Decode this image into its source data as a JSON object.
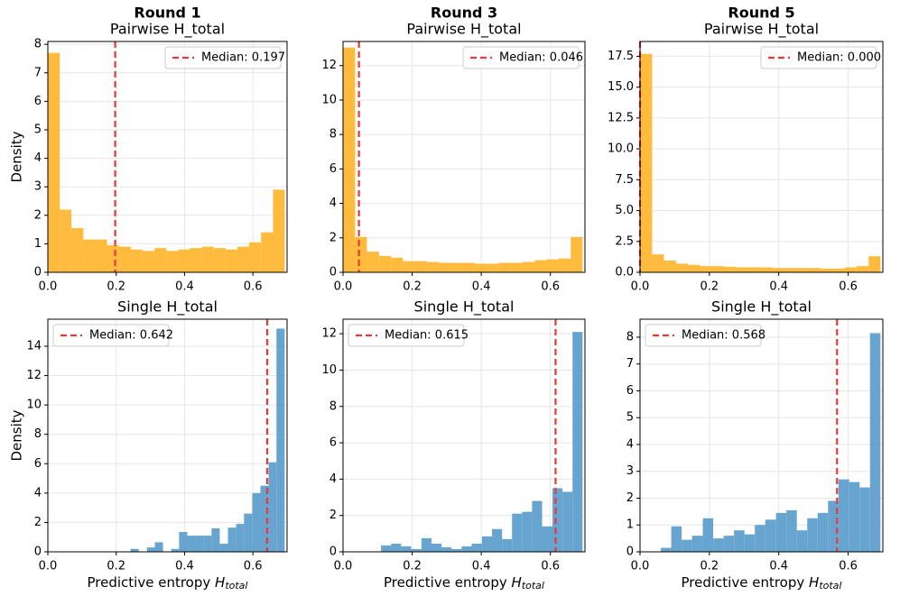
{
  "chart_data": [
    {
      "type": "histogram",
      "suptitle": "Round 1",
      "title": "Pairwise H_total",
      "ylabel": "Density",
      "color": "#ffb733",
      "bins": [
        0,
        0.035,
        0.069,
        0.104,
        0.139,
        0.173,
        0.208,
        0.243,
        0.277,
        0.312,
        0.347,
        0.381,
        0.416,
        0.451,
        0.485,
        0.52,
        0.555,
        0.589,
        0.624,
        0.659,
        0.693
      ],
      "values": [
        7.7,
        2.2,
        1.55,
        1.15,
        1.15,
        0.95,
        0.9,
        0.8,
        0.75,
        0.85,
        0.75,
        0.8,
        0.85,
        0.9,
        0.85,
        0.8,
        0.9,
        1.05,
        1.4,
        2.9
      ],
      "median": 0.197,
      "median_label": "Median: 0.197",
      "legend": "upper right",
      "grid": true,
      "xlim": [
        0,
        0.7
      ],
      "xticks": [
        {
          "value": 0,
          "label": "0.0"
        },
        0.2,
        0.4,
        0.6
      ],
      "ylim": [
        0,
        8.1
      ],
      "yticks": [
        0,
        1,
        2,
        3,
        4,
        5,
        6,
        7,
        8
      ]
    },
    {
      "type": "histogram",
      "suptitle": "Round 3",
      "title": "Pairwise H_total",
      "color": "#ffb733",
      "bins": [
        0,
        0.035,
        0.069,
        0.104,
        0.139,
        0.173,
        0.208,
        0.243,
        0.277,
        0.312,
        0.347,
        0.381,
        0.416,
        0.451,
        0.485,
        0.52,
        0.555,
        0.589,
        0.624,
        0.659,
        0.693
      ],
      "values": [
        13.05,
        2.05,
        1.2,
        0.95,
        0.85,
        0.65,
        0.65,
        0.6,
        0.55,
        0.55,
        0.55,
        0.5,
        0.5,
        0.55,
        0.55,
        0.6,
        0.7,
        0.75,
        0.8,
        2.05
      ],
      "median": 0.046,
      "median_label": "Median: 0.046",
      "legend": "upper right",
      "grid": true,
      "xlim": [
        0,
        0.7
      ],
      "xticks": [
        {
          "value": 0,
          "label": "0.0"
        },
        0.2,
        0.4,
        0.6
      ],
      "ylim": [
        0,
        13.4
      ],
      "yticks": [
        0,
        2,
        4,
        6,
        8,
        10,
        12
      ]
    },
    {
      "type": "histogram",
      "suptitle": "Round 5",
      "title": "Pairwise H_total",
      "color": "#ffb733",
      "bins": [
        0,
        0.035,
        0.069,
        0.104,
        0.139,
        0.173,
        0.208,
        0.243,
        0.277,
        0.312,
        0.347,
        0.381,
        0.416,
        0.451,
        0.485,
        0.52,
        0.555,
        0.589,
        0.624,
        0.659,
        0.693
      ],
      "values": [
        17.7,
        1.45,
        0.95,
        0.7,
        0.6,
        0.5,
        0.5,
        0.45,
        0.4,
        0.4,
        0.4,
        0.35,
        0.35,
        0.35,
        0.35,
        0.3,
        0.3,
        0.4,
        0.5,
        1.3
      ],
      "median": 0.0,
      "median_label": "Median: 0.000",
      "legend": "upper right",
      "grid": true,
      "xlim": [
        0,
        0.7
      ],
      "xticks": [
        {
          "value": 0,
          "label": "0.0"
        },
        0.2,
        0.4,
        0.6
      ],
      "ylim": [
        0,
        18.7
      ],
      "yticks": [
        {
          "value": 0,
          "label": "0.0"
        },
        2.5,
        {
          "value": 5,
          "label": "5.0"
        },
        7.5,
        {
          "value": 10,
          "label": "10.0"
        },
        12.5,
        {
          "value": 15,
          "label": "15.0"
        },
        17.5
      ]
    },
    {
      "type": "histogram",
      "title": "Single H_total",
      "ylabel": "Density",
      "xlabel": "Predictive entropy H_total",
      "color": "#5f9fcc",
      "bins": [
        0.242,
        0.266,
        0.29,
        0.313,
        0.337,
        0.361,
        0.384,
        0.408,
        0.432,
        0.456,
        0.479,
        0.503,
        0.527,
        0.551,
        0.574,
        0.598,
        0.622,
        0.646,
        0.669,
        0.693
      ],
      "values": [
        0.2,
        0,
        0.3,
        0.65,
        0,
        0.2,
        1.35,
        1.1,
        1.1,
        1.1,
        1.6,
        0.55,
        1.65,
        1.9,
        2.6,
        4.0,
        4.5,
        6.1,
        15.2
      ],
      "median": 0.642,
      "median_label": "Median: 0.642",
      "legend": "upper left",
      "grid": true,
      "xlim": [
        0,
        0.7
      ],
      "xticks": [
        {
          "value": 0,
          "label": "0.0"
        },
        0.2,
        0.4,
        0.6
      ],
      "ylim": [
        0,
        15.84
      ],
      "yticks": [
        0,
        2,
        4,
        6,
        8,
        10,
        12,
        14
      ]
    },
    {
      "type": "histogram",
      "title": "Single H_total",
      "xlabel": "Predictive entropy H_total",
      "color": "#5f9fcc",
      "bins": [
        0.11,
        0.139,
        0.168,
        0.197,
        0.227,
        0.256,
        0.285,
        0.314,
        0.343,
        0.372,
        0.402,
        0.431,
        0.46,
        0.489,
        0.518,
        0.547,
        0.576,
        0.606,
        0.635,
        0.664,
        0.693
      ],
      "values": [
        0.35,
        0.45,
        0.3,
        0.15,
        0.75,
        0.45,
        0.25,
        0.15,
        0.3,
        0.45,
        0.85,
        1.25,
        0.7,
        2.1,
        2.2,
        2.8,
        1.4,
        3.5,
        3.3,
        12.1
      ],
      "median": 0.615,
      "median_label": "Median: 0.615",
      "legend": "upper left",
      "grid": true,
      "xlim": [
        0,
        0.7
      ],
      "xticks": [
        {
          "value": 0,
          "label": "0.0"
        },
        0.2,
        0.4,
        0.6
      ],
      "ylim": [
        0,
        12.8
      ],
      "yticks": [
        0,
        2,
        4,
        6,
        8,
        10,
        12
      ]
    },
    {
      "type": "histogram",
      "title": "Single H_total",
      "xlabel": "Predictive entropy H_total",
      "color": "#5f9fcc",
      "bins": [
        0.06,
        0.09,
        0.12,
        0.15,
        0.181,
        0.211,
        0.241,
        0.271,
        0.301,
        0.331,
        0.361,
        0.392,
        0.422,
        0.452,
        0.482,
        0.512,
        0.542,
        0.572,
        0.603,
        0.633,
        0.663,
        0.693
      ],
      "values": [
        0.15,
        0.95,
        0.45,
        0.6,
        1.25,
        0.5,
        0.6,
        0.8,
        0.65,
        1.0,
        1.2,
        1.45,
        1.55,
        0.8,
        1.25,
        1.45,
        1.9,
        2.7,
        2.6,
        2.4,
        8.15
      ],
      "median": 0.568,
      "median_label": "Median: 0.568",
      "legend": "upper left",
      "grid": true,
      "xlim": [
        0,
        0.7
      ],
      "xticks": [
        {
          "value": 0,
          "label": "0.0"
        },
        0.2,
        0.4,
        0.6
      ],
      "ylim": [
        0,
        8.67
      ],
      "yticks": [
        0,
        1,
        2,
        3,
        4,
        5,
        6,
        7,
        8
      ]
    }
  ]
}
